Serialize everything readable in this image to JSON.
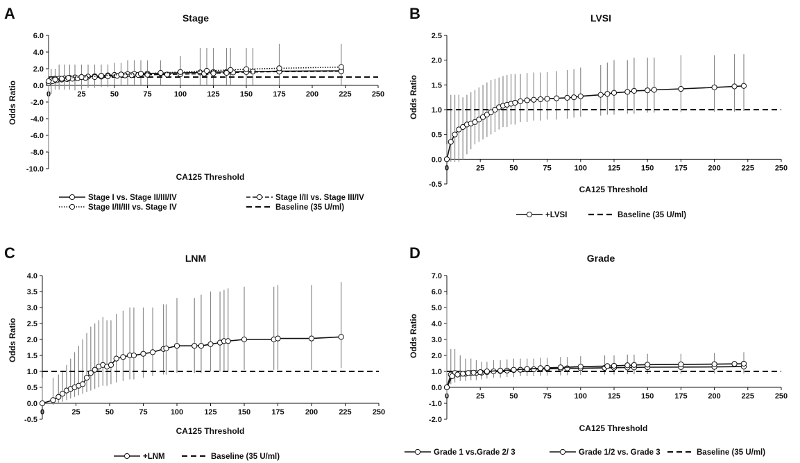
{
  "chart_data": [
    {
      "panel": "A",
      "type": "line",
      "title": "Stage",
      "xlabel": "CA125 Threshold",
      "ylabel": "Odds Ratio",
      "xlim": [
        0,
        250
      ],
      "ylim": [
        -10,
        6
      ],
      "x_tick_labels": [
        "0",
        "25",
        "50",
        "75",
        "100",
        "125",
        "150",
        "175",
        "200",
        "225",
        "250"
      ],
      "y_tick_labels": [
        "6.0",
        "4.0",
        "2.0",
        "0.0",
        "-2.0",
        "-4.0",
        "-6.0",
        "-8.0",
        "-10.0"
      ],
      "baseline": {
        "name": "Baseline (35 U/ml)",
        "value": 1
      },
      "legend_position": "bottom",
      "series": [
        {
          "name": "Stage I vs. Stage II/III/IV",
          "style": "solid",
          "x": [
            0,
            2,
            5,
            8,
            12,
            16,
            20,
            25,
            30,
            35,
            40,
            45,
            50,
            55,
            60,
            65,
            70,
            75,
            85,
            100,
            115,
            120,
            125,
            135,
            138,
            150,
            155,
            175,
            222
          ],
          "y": [
            0.4,
            0.7,
            0.8,
            0.8,
            0.85,
            0.9,
            0.95,
            1.0,
            1.05,
            1.1,
            1.15,
            1.2,
            1.25,
            1.3,
            1.35,
            1.38,
            1.4,
            1.42,
            1.45,
            1.5,
            1.55,
            1.57,
            1.6,
            1.62,
            1.63,
            1.65,
            1.66,
            1.7,
            1.75
          ],
          "ci_low": [
            -8.0,
            -1.0,
            -0.5,
            -0.5,
            -0.5,
            -0.5,
            -0.6,
            -0.5,
            -0.3,
            -0.3,
            -0.2,
            -0.2,
            0.0,
            0.0,
            0.0,
            0.0,
            0.0,
            0.0,
            0.0,
            0.0,
            0.0,
            0.0,
            0.0,
            0.0,
            0.0,
            0.0,
            0.0,
            0.0,
            0.0
          ],
          "ci_high": [
            2.0,
            2.0,
            2.0,
            2.5,
            2.5,
            2.5,
            2.5,
            2.5,
            2.5,
            2.5,
            2.5,
            2.5,
            2.7,
            2.7,
            3.0,
            3.0,
            3.0,
            3.0,
            3.0,
            3.5,
            4.5,
            4.5,
            4.5,
            4.5,
            4.5,
            4.5,
            4.5,
            5.0,
            5.0
          ]
        },
        {
          "name": "Stage I/II vs. Stage III/IV",
          "style": "dashed",
          "x": [
            0,
            3,
            6,
            10,
            14,
            18,
            22,
            28,
            35,
            40,
            45,
            52,
            58,
            63,
            68,
            75,
            90,
            100,
            118,
            125,
            135,
            140,
            150,
            175,
            222
          ],
          "y": [
            0.3,
            0.5,
            0.6,
            0.7,
            0.75,
            0.8,
            0.85,
            0.9,
            1.0,
            1.05,
            1.1,
            1.15,
            1.2,
            1.22,
            1.25,
            1.28,
            1.3,
            1.35,
            1.4,
            1.45,
            1.5,
            1.55,
            1.6,
            1.65,
            1.7
          ]
        },
        {
          "name": "Stage I/II/III vs. Stage IV",
          "style": "dotted",
          "x": [
            0,
            5,
            10,
            15,
            25,
            40,
            55,
            70,
            85,
            100,
            120,
            138,
            150,
            175,
            222
          ],
          "y": [
            0.5,
            0.7,
            0.8,
            0.9,
            1.0,
            1.15,
            1.3,
            1.4,
            1.5,
            1.6,
            1.75,
            1.85,
            1.95,
            2.05,
            2.2
          ]
        }
      ]
    },
    {
      "panel": "B",
      "type": "line",
      "title": "LVSI",
      "xlabel": "CA125 Threshold",
      "ylabel": "Odds Ratio",
      "xlim": [
        0,
        250
      ],
      "ylim": [
        -0.5,
        2.5
      ],
      "x_tick_labels": [
        "0",
        "25",
        "50",
        "75",
        "100",
        "125",
        "150",
        "175",
        "200",
        "225",
        "250"
      ],
      "y_tick_labels": [
        "2.5",
        "2.0",
        "1.5",
        "1.0",
        "0.5",
        "0.0",
        "-0.5"
      ],
      "baseline": {
        "name": "Baseline (35 U/ml)",
        "value": 1
      },
      "legend_position": "bottom",
      "series": [
        {
          "name": "+LVSI",
          "style": "solid",
          "x": [
            0,
            3,
            6,
            9,
            12,
            15,
            18,
            21,
            24,
            27,
            30,
            33,
            36,
            39,
            42,
            45,
            48,
            51,
            55,
            60,
            65,
            70,
            75,
            82,
            90,
            95,
            100,
            115,
            120,
            125,
            135,
            140,
            150,
            155,
            175,
            200,
            215,
            222
          ],
          "y": [
            0.0,
            0.35,
            0.5,
            0.6,
            0.65,
            0.7,
            0.72,
            0.75,
            0.8,
            0.85,
            0.9,
            0.95,
            1.0,
            1.05,
            1.08,
            1.1,
            1.12,
            1.14,
            1.17,
            1.19,
            1.2,
            1.21,
            1.22,
            1.23,
            1.24,
            1.25,
            1.27,
            1.3,
            1.32,
            1.34,
            1.36,
            1.38,
            1.39,
            1.4,
            1.42,
            1.45,
            1.47,
            1.48
          ],
          "ci_low": [
            -0.05,
            -0.05,
            -0.05,
            -0.05,
            0.0,
            0.1,
            0.2,
            0.3,
            0.35,
            0.4,
            0.45,
            0.5,
            0.55,
            0.6,
            0.65,
            0.65,
            0.7,
            0.7,
            0.75,
            0.75,
            0.78,
            0.78,
            0.8,
            0.8,
            0.82,
            0.84,
            0.86,
            0.88,
            0.9,
            0.9,
            0.92,
            0.92,
            0.94,
            0.94,
            0.95,
            0.96,
            0.96,
            0.97
          ],
          "ci_high": [
            0.3,
            1.3,
            1.3,
            1.3,
            1.25,
            1.3,
            1.35,
            1.4,
            1.45,
            1.5,
            1.55,
            1.6,
            1.62,
            1.65,
            1.68,
            1.7,
            1.72,
            1.72,
            1.72,
            1.74,
            1.75,
            1.75,
            1.76,
            1.78,
            1.8,
            1.82,
            1.85,
            1.9,
            1.95,
            2.0,
            2.0,
            2.05,
            2.05,
            2.05,
            2.1,
            2.1,
            2.12,
            2.12
          ]
        }
      ]
    },
    {
      "panel": "C",
      "type": "line",
      "title": "LNM",
      "xlabel": "CA125 Threshold",
      "ylabel": "Odds Ratio",
      "xlim": [
        0,
        250
      ],
      "ylim": [
        -0.5,
        4.0
      ],
      "x_tick_labels": [
        "0",
        "25",
        "50",
        "75",
        "100",
        "125",
        "150",
        "175",
        "200",
        "225",
        "250"
      ],
      "y_tick_labels": [
        "4.0",
        "3.5",
        "3.0",
        "2.5",
        "2.0",
        "1.5",
        "1.0",
        "0.5",
        "0.0",
        "-0.5"
      ],
      "baseline": {
        "name": "Baseline (35 U/ml)",
        "value": 1
      },
      "legend_position": "bottom",
      "series": [
        {
          "name": "+LNM",
          "style": "solid",
          "x": [
            0,
            8,
            12,
            15,
            18,
            21,
            24,
            27,
            30,
            33,
            36,
            39,
            42,
            45,
            48,
            51,
            55,
            60,
            65,
            68,
            75,
            82,
            90,
            92,
            100,
            113,
            118,
            125,
            132,
            135,
            138,
            150,
            172,
            175,
            200,
            222
          ],
          "y": [
            0.0,
            0.1,
            0.2,
            0.3,
            0.4,
            0.45,
            0.5,
            0.55,
            0.6,
            0.8,
            0.95,
            1.05,
            1.15,
            1.2,
            1.15,
            1.2,
            1.4,
            1.45,
            1.5,
            1.5,
            1.55,
            1.6,
            1.7,
            1.72,
            1.8,
            1.8,
            1.8,
            1.85,
            1.9,
            1.95,
            1.95,
            2.0,
            2.0,
            2.03,
            2.03,
            2.08
          ],
          "ci_low": [
            -0.05,
            -0.05,
            0.0,
            0.05,
            0.1,
            0.15,
            0.2,
            0.25,
            0.3,
            0.35,
            0.4,
            0.45,
            0.5,
            0.55,
            0.55,
            0.6,
            0.65,
            0.7,
            0.75,
            0.75,
            0.8,
            0.85,
            0.9,
            0.9,
            0.95,
            0.95,
            0.95,
            1.0,
            1.0,
            1.0,
            1.0,
            1.05,
            1.05,
            1.05,
            1.05,
            1.1
          ],
          "ci_high": [
            0.8,
            0.8,
            0.9,
            1.0,
            1.2,
            1.4,
            1.6,
            1.8,
            2.0,
            2.2,
            2.4,
            2.5,
            2.6,
            2.7,
            2.6,
            2.6,
            2.8,
            2.9,
            3.0,
            3.0,
            3.0,
            3.0,
            3.1,
            3.1,
            3.3,
            3.3,
            3.4,
            3.5,
            3.5,
            3.55,
            3.6,
            3.65,
            3.65,
            3.7,
            3.7,
            3.8
          ]
        }
      ]
    },
    {
      "panel": "D",
      "type": "line",
      "title": "Grade",
      "xlabel": "CA125 Threshold",
      "ylabel": "Odds Ratio",
      "xlim": [
        0,
        250
      ],
      "ylim": [
        -2.0,
        7.0
      ],
      "x_tick_labels": [
        "0",
        "25",
        "50",
        "75",
        "100",
        "125",
        "150",
        "175",
        "200",
        "225",
        "250"
      ],
      "y_tick_labels": [
        "7.0",
        "6.0",
        "5.0",
        "4.0",
        "3.0",
        "2.0",
        "1.0",
        "0.0",
        "-1.0",
        "-2.0"
      ],
      "baseline": {
        "name": "Baseline (35 U/ml)",
        "value": 1
      },
      "legend_position": "bottom",
      "series": [
        {
          "name": "Grade 1 vs.Grade  2/ 3",
          "style": "solid",
          "x": [
            0,
            3,
            6,
            10,
            14,
            18,
            22,
            26,
            30,
            35,
            40,
            45,
            50,
            55,
            60,
            65,
            70,
            75,
            85,
            90,
            100,
            118,
            125,
            135,
            140,
            150,
            175,
            200,
            222
          ],
          "y": [
            0.0,
            0.8,
            0.9,
            0.85,
            0.85,
            0.9,
            0.9,
            0.92,
            0.95,
            1.0,
            1.02,
            1.05,
            1.08,
            1.1,
            1.12,
            1.13,
            1.15,
            1.16,
            1.18,
            1.19,
            1.2,
            1.22,
            1.23,
            1.24,
            1.25,
            1.26,
            1.27,
            1.28,
            1.3
          ],
          "ci_low": [
            -0.6,
            0.2,
            0.3,
            0.4,
            0.4,
            0.45,
            0.45,
            0.5,
            0.55,
            0.6,
            0.6,
            0.65,
            0.65,
            0.7,
            0.7,
            0.7,
            0.72,
            0.74,
            0.75,
            0.76,
            0.78,
            0.8,
            0.8,
            0.82,
            0.82,
            0.84,
            0.85,
            0.86,
            0.88
          ],
          "ci_high": [
            5.8,
            2.4,
            2.4,
            2.0,
            1.8,
            1.8,
            1.7,
            1.6,
            1.6,
            1.7,
            1.7,
            1.75,
            1.8,
            1.8,
            1.8,
            1.8,
            1.85,
            1.85,
            1.9,
            1.9,
            1.95,
            2.0,
            2.0,
            2.05,
            2.05,
            2.1,
            2.1,
            2.15,
            2.2
          ]
        },
        {
          "name": "Grade 1/2 vs.  Grade 3",
          "style": "solid",
          "x": [
            0,
            4,
            8,
            12,
            16,
            20,
            25,
            30,
            40,
            50,
            60,
            70,
            75,
            85,
            100,
            120,
            125,
            135,
            140,
            150,
            175,
            200,
            215,
            222
          ],
          "y": [
            0.0,
            0.7,
            0.8,
            0.85,
            0.9,
            0.92,
            0.95,
            1.0,
            1.05,
            1.1,
            1.15,
            1.2,
            1.22,
            1.25,
            1.3,
            1.33,
            1.35,
            1.38,
            1.4,
            1.42,
            1.44,
            1.45,
            1.47,
            1.48
          ]
        }
      ]
    }
  ],
  "panels": [
    {
      "letter": "A",
      "title": "Stage",
      "xlabel": "CA125 Threshold",
      "ylabel": "Odds Ratio"
    },
    {
      "letter": "B",
      "title": "LVSI",
      "xlabel": "CA125 Threshold",
      "ylabel": "Odds Ratio"
    },
    {
      "letter": "C",
      "title": "LNM",
      "xlabel": "CA125 Threshold",
      "ylabel": "Odds Ratio"
    },
    {
      "letter": "D",
      "title": "Grade",
      "xlabel": "CA125 Threshold",
      "ylabel": "Odds Ratio"
    }
  ],
  "colors": {
    "line": "#111111",
    "error_bar": "#888888",
    "marker_fill": "#ffffff",
    "background": "#ffffff"
  }
}
